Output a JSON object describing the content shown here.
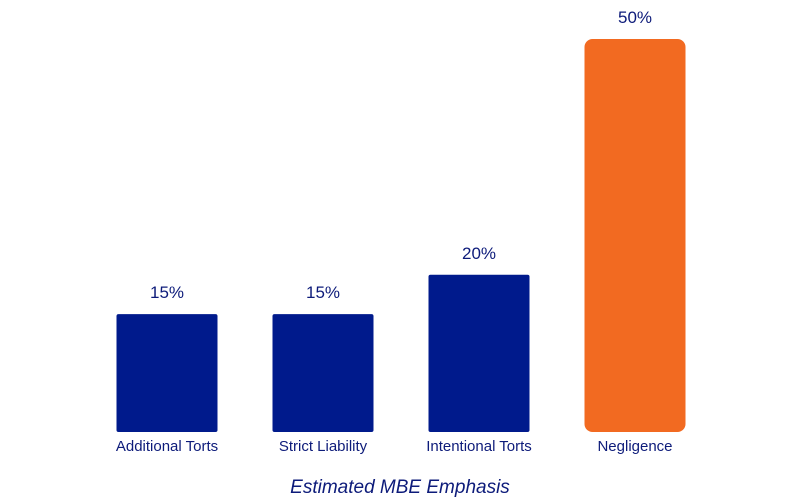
{
  "chart_data": {
    "type": "bar",
    "categories": [
      "Additional Torts",
      "Strict Liability",
      "Intentional Torts",
      "Negligence"
    ],
    "values": [
      15,
      15,
      20,
      50
    ],
    "value_labels": [
      "15%",
      "15%",
      "20%",
      "50%"
    ],
    "title": "Estimated MBE Emphasis",
    "xlabel": "",
    "ylabel": "",
    "ylim": [
      0,
      50
    ],
    "grid": false,
    "legend": "none",
    "bar_colors": [
      "#001a8c",
      "#001a8c",
      "#001a8c",
      "#f26a21"
    ],
    "text_color": "#0d1b7a"
  }
}
